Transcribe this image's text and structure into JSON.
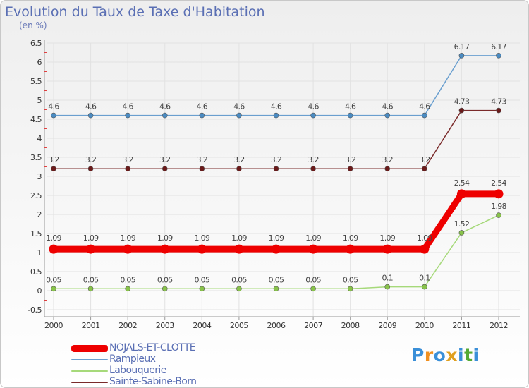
{
  "chart_data": {
    "type": "line",
    "title": "Evolution du Taux de Taxe d'Habitation",
    "unit": "(en %)",
    "xlabel": "",
    "ylabel": "",
    "categories": [
      "2000",
      "2001",
      "2002",
      "2003",
      "2004",
      "2005",
      "2006",
      "2007",
      "2008",
      "2009",
      "2010",
      "2011",
      "2012"
    ],
    "ylim": [
      -0.5,
      6.5
    ],
    "yticks": [
      "-0.5",
      "0",
      "0.5",
      "1",
      "1.5",
      "2",
      "2.5",
      "3",
      "3.5",
      "4",
      "4.5",
      "5",
      "5.5",
      "6",
      "6.5"
    ],
    "grid": true,
    "series": [
      {
        "name": "Rampieux",
        "color": "#6a9fcf",
        "marker": "#4a8bc2",
        "values": [
          4.6,
          4.6,
          4.6,
          4.6,
          4.6,
          4.6,
          4.6,
          4.6,
          4.6,
          4.6,
          4.6,
          6.17,
          6.17
        ],
        "labels": [
          "4.6",
          "4.6",
          "4.6",
          "4.6",
          "4.6",
          "4.6",
          "4.6",
          "4.6",
          "4.6",
          "4.6",
          "4.6",
          "6.17",
          "6.17"
        ]
      },
      {
        "name": "Sainte-Sabine-Born",
        "color": "#7a2a2a",
        "marker": "#6a1a1a",
        "values": [
          3.2,
          3.2,
          3.2,
          3.2,
          3.2,
          3.2,
          3.2,
          3.2,
          3.2,
          3.2,
          3.2,
          4.73,
          4.73
        ],
        "labels": [
          "3.2",
          "3.2",
          "3.2",
          "3.2",
          "3.2",
          "3.2",
          "3.2",
          "3.2",
          "3.2",
          "3.2",
          "3.2",
          "4.73",
          "4.73"
        ]
      },
      {
        "name": "NOJALS-ET-CLOTTE",
        "color": "#ee0000",
        "marker": "#ee0000",
        "values": [
          1.09,
          1.09,
          1.09,
          1.09,
          1.09,
          1.09,
          1.09,
          1.09,
          1.09,
          1.09,
          1.09,
          2.54,
          2.54
        ],
        "labels": [
          "1.09",
          "1.09",
          "1.09",
          "1.09",
          "1.09",
          "1.09",
          "1.09",
          "1.09",
          "1.09",
          "1.09",
          "1.09",
          "2.54",
          "2.54"
        ]
      },
      {
        "name": "Labouquerie",
        "color": "#a6d97a",
        "marker": "#88c34a",
        "values": [
          0.05,
          0.05,
          0.05,
          0.05,
          0.05,
          0.05,
          0.05,
          0.05,
          0.05,
          0.1,
          0.1,
          1.52,
          1.98
        ],
        "labels": [
          "0.05",
          "0.05",
          "0.05",
          "0.05",
          "0.05",
          "0.05",
          "0.05",
          "0.05",
          "0.05",
          "0.1",
          "0.1",
          "1.52",
          "1.98"
        ]
      }
    ],
    "legend_order": [
      "NOJALS-ET-CLOTTE",
      "Rampieux",
      "Labouquerie",
      "Sainte-Sabine-Born"
    ]
  },
  "legend": [
    {
      "name": "NOJALS-ET-CLOTTE",
      "color": "#ee0000"
    },
    {
      "name": "Rampieux",
      "color": "#6a9fcf"
    },
    {
      "name": "Labouquerie",
      "color": "#a6d97a"
    },
    {
      "name": "Sainte-Sabine-Born",
      "color": "#7a2a2a"
    }
  ],
  "brand": {
    "letters": [
      "P",
      "r",
      "o",
      "x",
      "i",
      "t",
      "i"
    ],
    "colors": [
      "#3a8fd8",
      "#f09020",
      "#3a8fd8",
      "#e0a020",
      "#3a8fd8",
      "#55aa33",
      "#3a8fd8"
    ]
  }
}
